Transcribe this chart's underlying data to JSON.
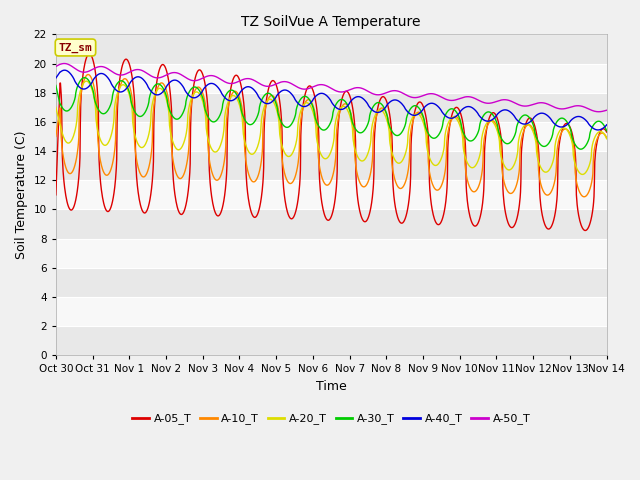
{
  "title": "TZ SoilVue A Temperature",
  "xlabel": "Time",
  "ylabel": "Soil Temperature (C)",
  "ylim": [
    0,
    22
  ],
  "yticks": [
    0,
    2,
    4,
    6,
    8,
    10,
    12,
    14,
    16,
    18,
    20,
    22
  ],
  "x_labels": [
    "Oct 30",
    "Oct 31",
    "Nov 1",
    "Nov 2",
    "Nov 3",
    "Nov 4",
    "Nov 5",
    "Nov 6",
    "Nov 7",
    "Nov 8",
    "Nov 9",
    "Nov 10",
    "Nov 11",
    "Nov 12",
    "Nov 13",
    "Nov 14"
  ],
  "background_color": "#f0f0f0",
  "plot_bg_color": "#f0f0f0",
  "series": {
    "A-05_T": {
      "color": "#dd0000",
      "linewidth": 1.0
    },
    "A-10_T": {
      "color": "#ff8800",
      "linewidth": 1.0
    },
    "A-20_T": {
      "color": "#dddd00",
      "linewidth": 1.0
    },
    "A-30_T": {
      "color": "#00cc00",
      "linewidth": 1.0
    },
    "A-40_T": {
      "color": "#0000dd",
      "linewidth": 1.0
    },
    "A-50_T": {
      "color": "#cc00cc",
      "linewidth": 1.0
    }
  },
  "grid_color": "#ffffff",
  "annotation_label": "TZ_sm",
  "annotation_color": "#880000",
  "annotation_bg": "#ffffcc",
  "annotation_border": "#cccc00",
  "n_days": 15
}
